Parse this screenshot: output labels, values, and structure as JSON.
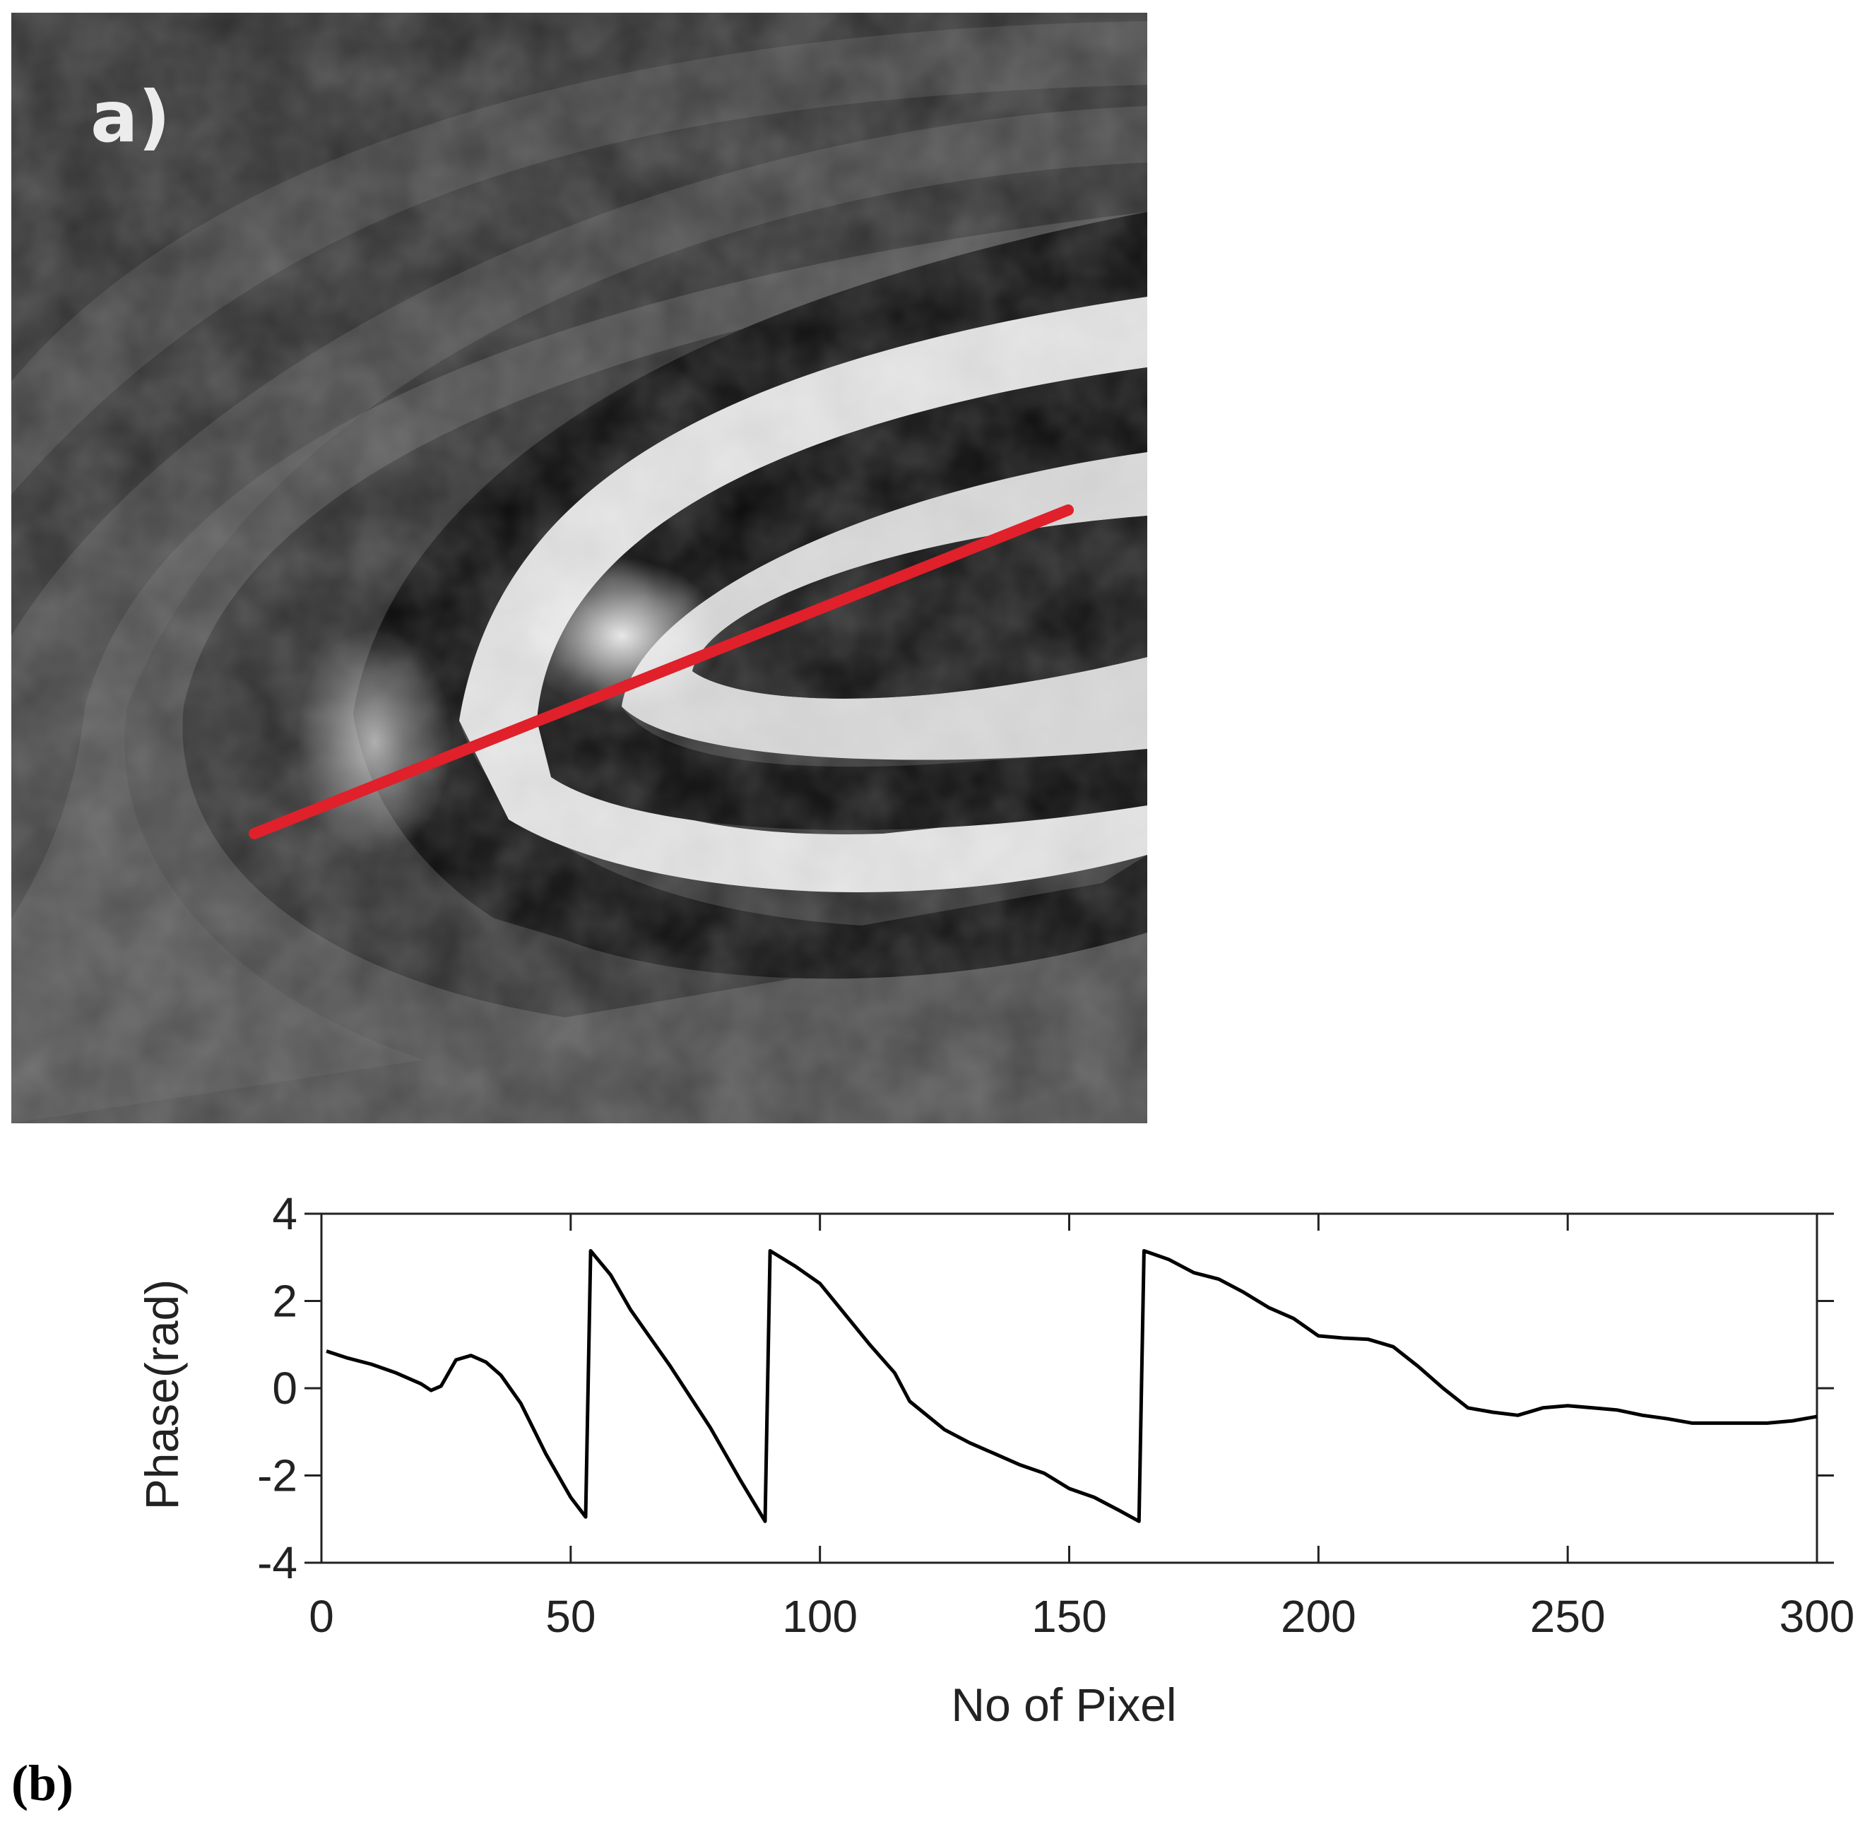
{
  "figure": {
    "panel_a_label": "a)",
    "panel_b_label": "(b)"
  },
  "phase_map": {
    "line_color": "#e0202a"
  },
  "chart_data": {
    "type": "line",
    "title": "",
    "xlabel": "No of Pixel",
    "ylabel": "Phase(rad)",
    "xlim": [
      0,
      300
    ],
    "ylim": [
      -4,
      4
    ],
    "xticks": [
      0,
      50,
      100,
      150,
      200,
      250,
      300
    ],
    "yticks": [
      4,
      2,
      0,
      -2,
      -4
    ],
    "grid": false,
    "line_color": "#000000",
    "series": [
      {
        "name": "phase",
        "x": [
          1,
          5,
          10,
          15,
          20,
          22,
          24,
          27,
          30,
          33,
          36,
          40,
          45,
          50,
          53,
          54,
          58,
          62,
          70,
          78,
          84,
          89,
          90,
          95,
          100,
          105,
          110,
          115,
          118,
          125,
          130,
          135,
          140,
          145,
          150,
          155,
          160,
          164,
          165,
          170,
          175,
          180,
          185,
          190,
          195,
          200,
          205,
          210,
          215,
          220,
          225,
          230,
          235,
          240,
          245,
          250,
          255,
          260,
          265,
          270,
          275,
          280,
          285,
          290,
          295,
          300
        ],
        "y": [
          0.85,
          0.7,
          0.55,
          0.35,
          0.1,
          -0.05,
          0.05,
          0.65,
          0.75,
          0.6,
          0.3,
          -0.35,
          -1.5,
          -2.5,
          -2.95,
          3.15,
          2.6,
          1.8,
          0.5,
          -0.9,
          -2.1,
          -3.05,
          3.15,
          2.8,
          2.4,
          1.7,
          1.0,
          0.35,
          -0.3,
          -0.95,
          -1.25,
          -1.5,
          -1.75,
          -1.95,
          -2.3,
          -2.5,
          -2.8,
          -3.05,
          3.15,
          2.95,
          2.65,
          2.5,
          2.2,
          1.85,
          1.6,
          1.2,
          1.15,
          1.12,
          0.95,
          0.5,
          0.0,
          -0.45,
          -0.55,
          -0.62,
          -0.45,
          -0.4,
          -0.45,
          -0.5,
          -0.62,
          -0.7,
          -0.8,
          -0.8,
          -0.8,
          -0.8,
          -0.75,
          -0.65
        ]
      }
    ]
  }
}
